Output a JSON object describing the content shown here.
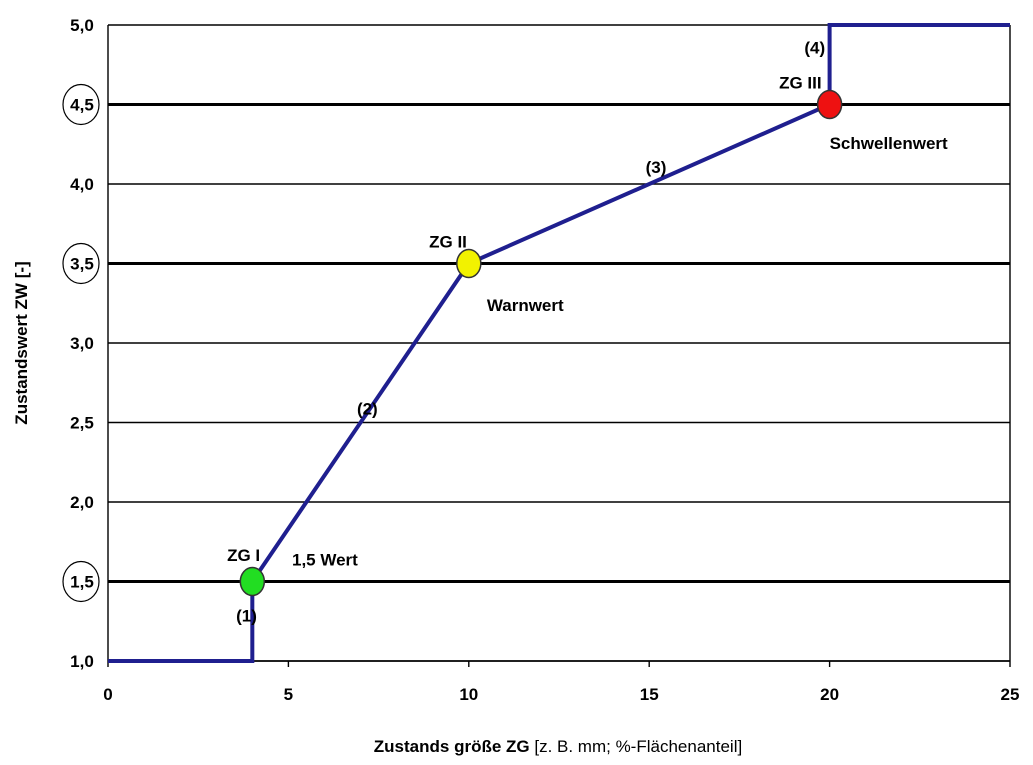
{
  "chart_data": {
    "type": "line",
    "title": "",
    "xlabel_bold": "Zustands größe ZG",
    "xlabel_rest": " [z. B. mm; %-Flächenanteil]",
    "ylabel": "Zustandswert  ZW [-]",
    "xlim": [
      0,
      25
    ],
    "ylim": [
      1.0,
      5.0
    ],
    "x_ticks": [
      0,
      5,
      10,
      15,
      20,
      25
    ],
    "x_tick_labels": [
      "0",
      "5",
      "10",
      "15",
      "20",
      "25"
    ],
    "y_ticks": [
      1.0,
      1.5,
      2.0,
      2.5,
      3.0,
      3.5,
      4.0,
      4.5,
      5.0
    ],
    "y_tick_labels": [
      "1,0",
      "1,5",
      "2,0",
      "2,5",
      "3,0",
      "3,5",
      "4,0",
      "4,5",
      "5,0"
    ],
    "emphasized_y_ticks": [
      1.5,
      3.5,
      4.5
    ],
    "circled_y_ticks": [
      1.5,
      3.5,
      4.5
    ],
    "grid": true,
    "series": [
      {
        "x": [
          0,
          4,
          4,
          10,
          20,
          20,
          25
        ],
        "y": [
          1.0,
          1.0,
          1.5,
          3.5,
          4.5,
          5.0,
          5.0
        ],
        "color": "#1f1f8f"
      }
    ],
    "markers": [
      {
        "x": 4,
        "y": 1.5,
        "color": "#22dd22"
      },
      {
        "x": 10,
        "y": 3.5,
        "color": "#f2f200"
      },
      {
        "x": 20,
        "y": 4.5,
        "color": "#ee1111"
      }
    ],
    "annotations": [
      {
        "text": "(1)",
        "x": 3.55,
        "y": 1.25
      },
      {
        "text": "(2)",
        "x": 6.9,
        "y": 2.55
      },
      {
        "text": "(3)",
        "x": 14.9,
        "y": 4.07
      },
      {
        "text": "(4)",
        "x": 19.3,
        "y": 4.82
      },
      {
        "text": "ZG I",
        "x": 3.3,
        "y": 1.63
      },
      {
        "text": "ZG II",
        "x": 8.9,
        "y": 3.6
      },
      {
        "text": "ZG III",
        "x": 18.6,
        "y": 4.6
      },
      {
        "text": "1,5 Wert",
        "x": 5.1,
        "y": 1.6
      },
      {
        "text": "Warnwert",
        "x": 10.5,
        "y": 3.2
      },
      {
        "text": "Schwellenwert",
        "x": 20.0,
        "y": 4.22
      }
    ]
  }
}
